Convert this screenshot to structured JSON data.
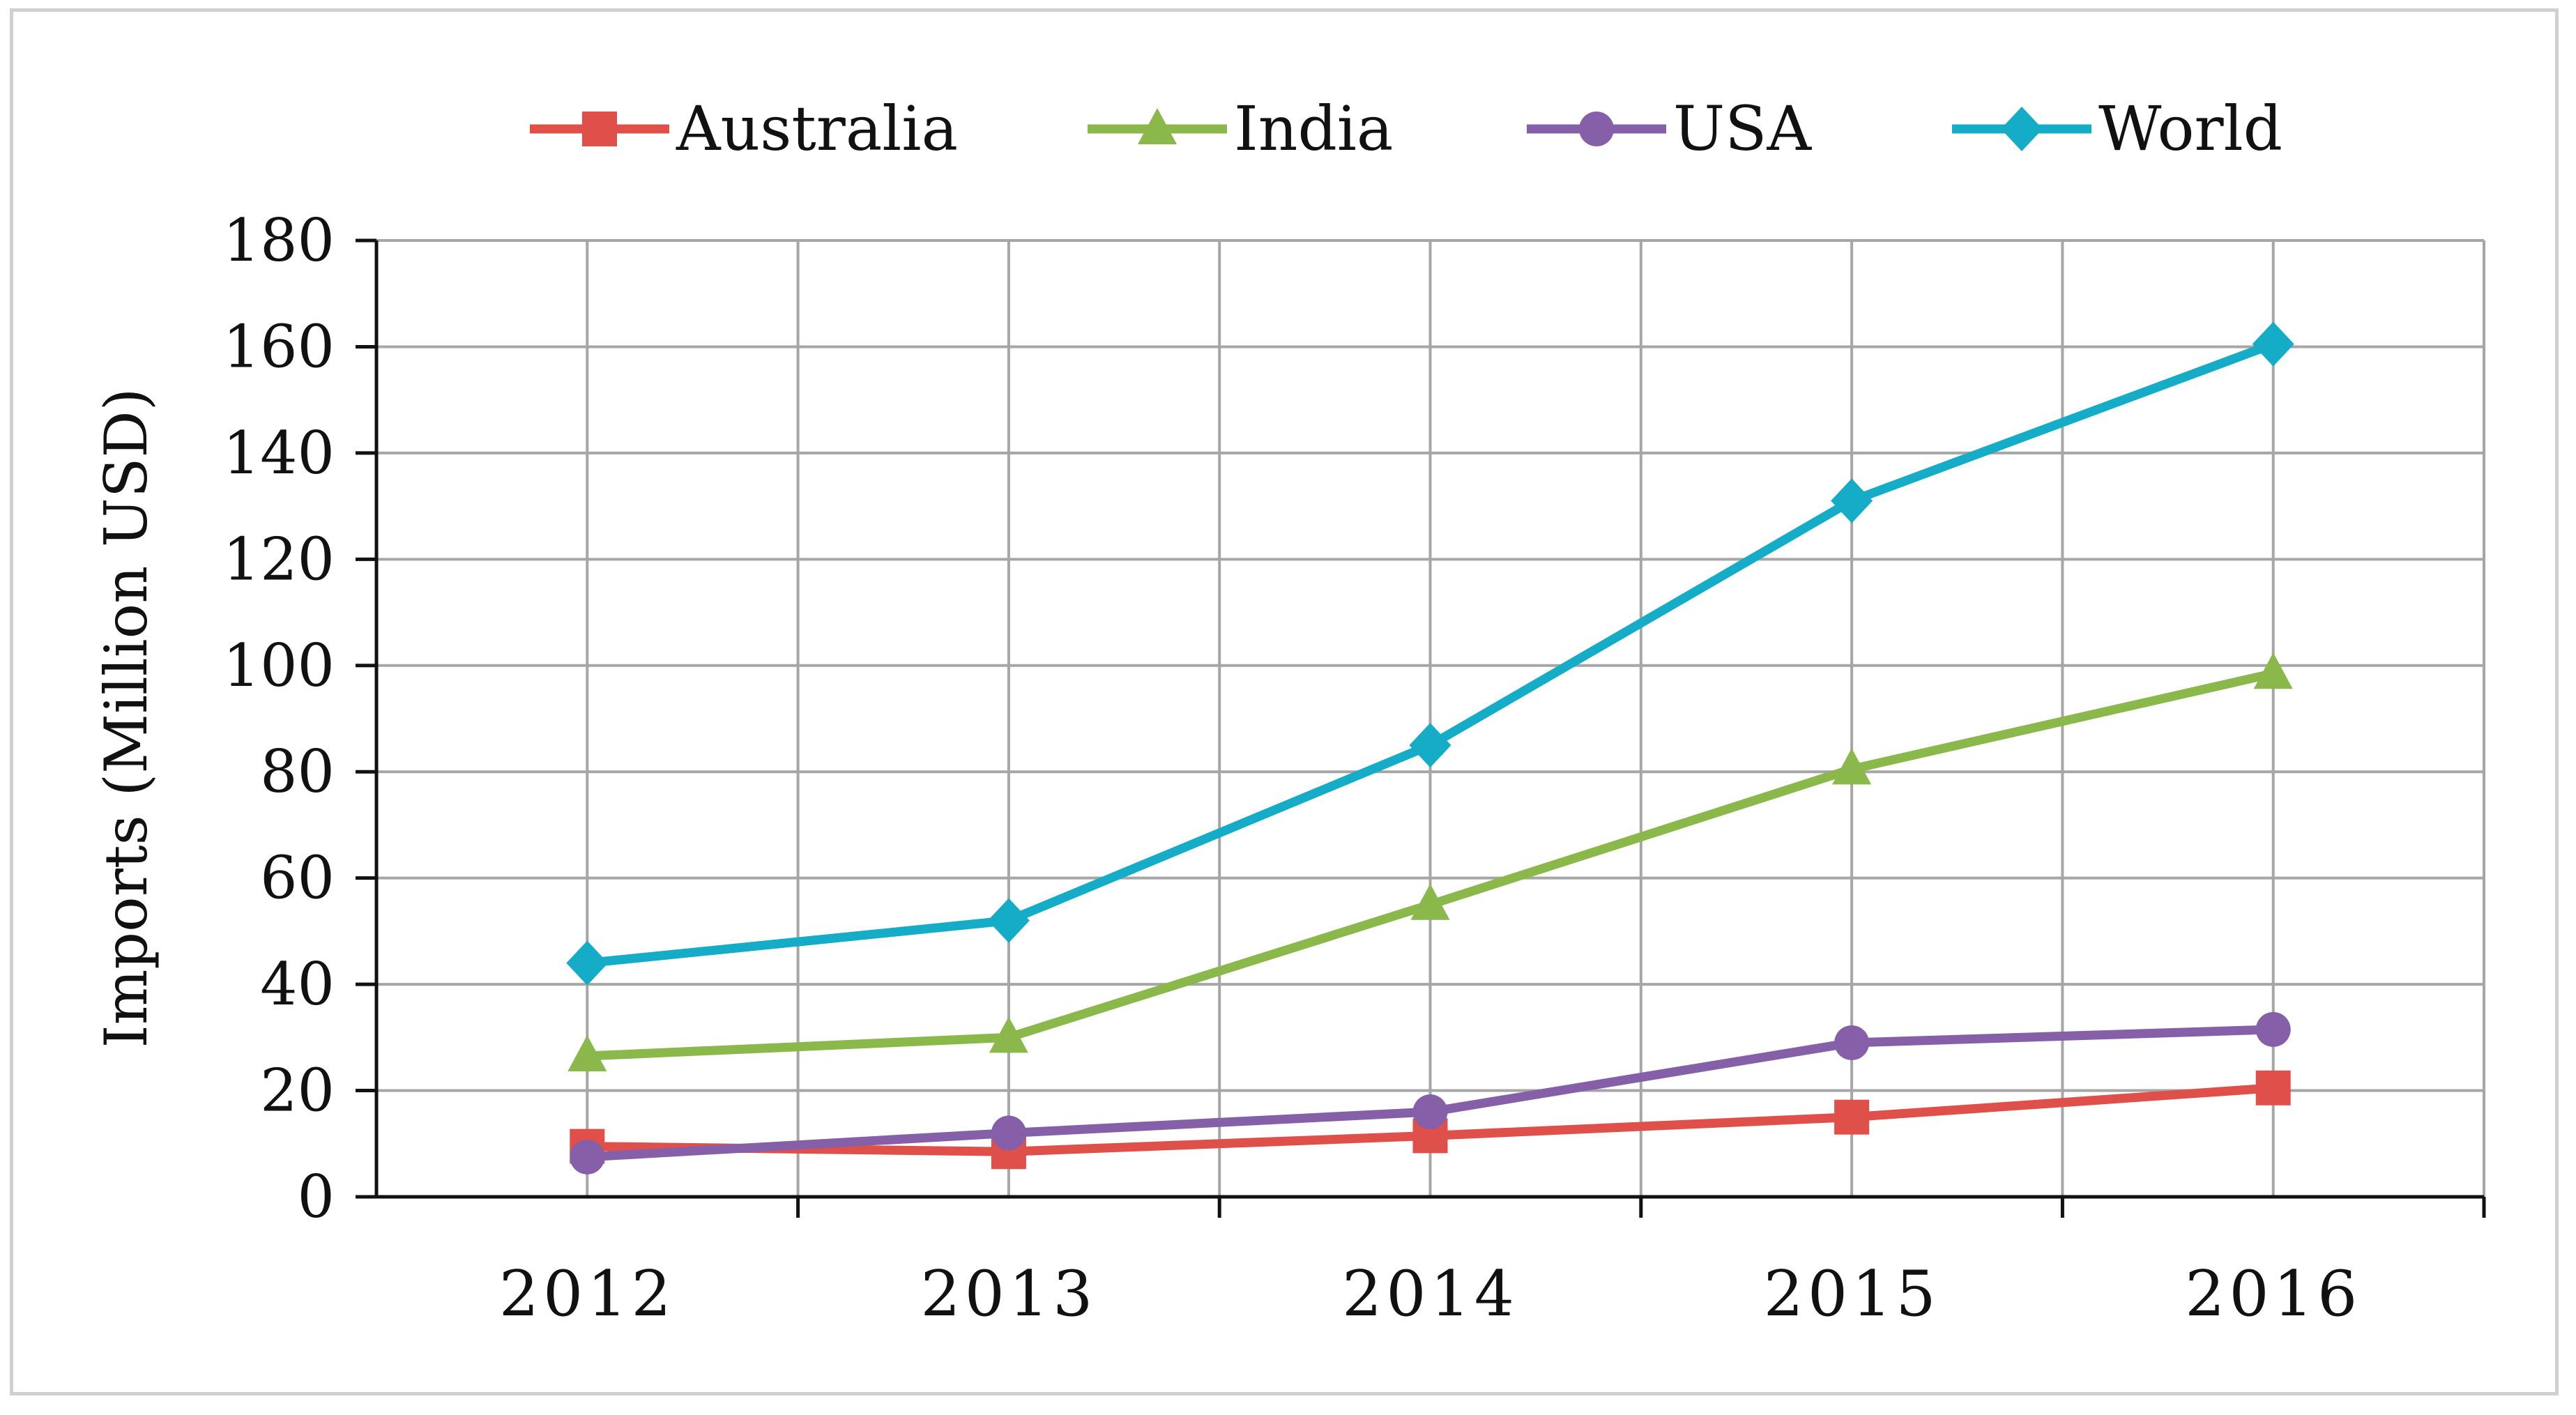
{
  "chart_data": {
    "type": "line",
    "title": "",
    "xlabel": "",
    "ylabel": "Imports (Million USD)",
    "categories": [
      "2012",
      "2013",
      "2014",
      "2015",
      "2016"
    ],
    "ylim": [
      0,
      180
    ],
    "yticks": [
      0,
      20,
      40,
      60,
      80,
      100,
      120,
      140,
      160,
      180
    ],
    "grid": true,
    "legend_position": "top",
    "series": [
      {
        "name": "Australia",
        "marker": "square",
        "color": "#e0504a",
        "values": [
          9.5,
          8.5,
          11.5,
          15,
          20.5
        ]
      },
      {
        "name": "India",
        "marker": "triangle",
        "color": "#8ab84a",
        "values": [
          26.5,
          30,
          55,
          80.5,
          98.5
        ]
      },
      {
        "name": "USA",
        "marker": "circle",
        "color": "#8560a8",
        "values": [
          7.5,
          12,
          16,
          29,
          31.5
        ]
      },
      {
        "name": "World",
        "marker": "diamond",
        "color": "#14acc6",
        "values": [
          44,
          52,
          85,
          131,
          160.5
        ]
      }
    ]
  }
}
